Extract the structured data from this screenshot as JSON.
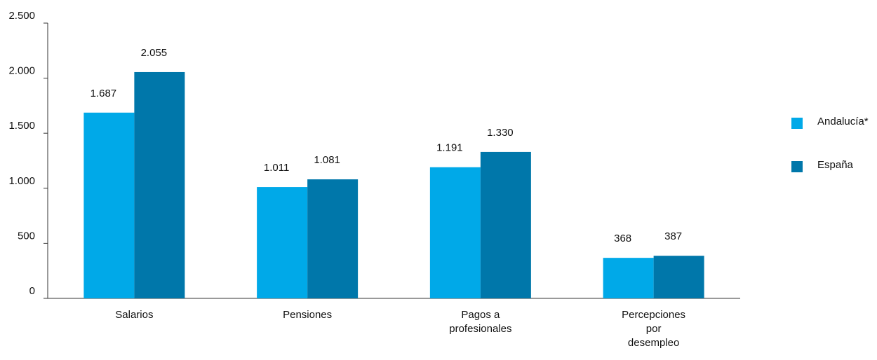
{
  "chart_data": {
    "type": "bar",
    "categories": [
      "Salarios",
      "Pensiones",
      "Pagos a profesionales",
      "Percepciones por desempleo"
    ],
    "series": [
      {
        "name": "Andalucía*",
        "color": "#00a9e8",
        "values": [
          1687,
          1011,
          1191,
          368
        ],
        "value_labels": [
          "1.687",
          "1.011",
          "1.191",
          "368"
        ]
      },
      {
        "name": "España",
        "color": "#0077aa",
        "values": [
          2055,
          1081,
          1330,
          387
        ],
        "value_labels": [
          "2.055",
          "1.081",
          "1.330",
          "387"
        ]
      }
    ],
    "ylim": [
      0,
      2500
    ],
    "yticks": [
      0,
      500,
      {
        "value": 1000,
        "label": "1.000"
      },
      {
        "value": 1500,
        "label": "1.500"
      },
      {
        "value": 2000,
        "label": "2.000"
      },
      {
        "value": 2500,
        "label": "2.500"
      }
    ],
    "grid": false,
    "legend": "right"
  }
}
